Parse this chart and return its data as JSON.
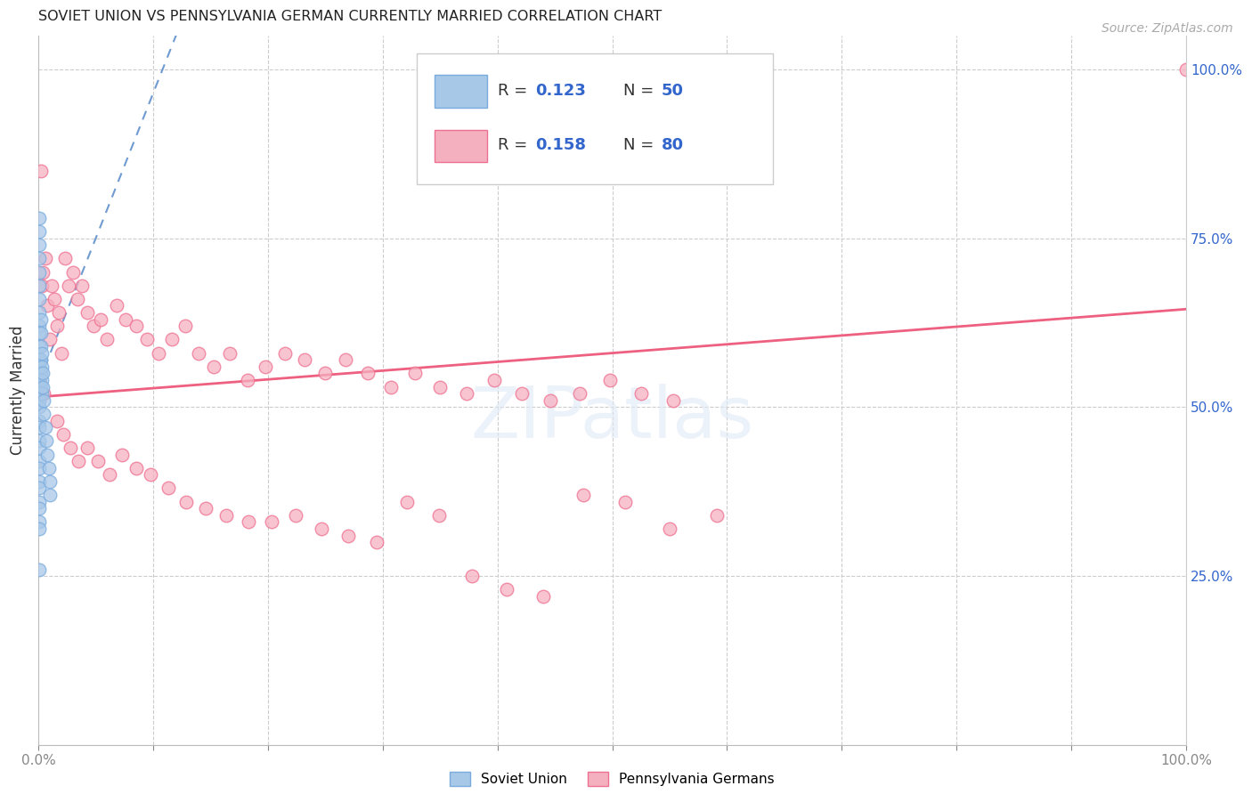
{
  "title": "SOVIET UNION VS PENNSYLVANIA GERMAN CURRENTLY MARRIED CORRELATION CHART",
  "source": "Source: ZipAtlas.com",
  "ylabel": "Currently Married",
  "watermark": "ZIPatlas",
  "color_soviet": "#a8c8e8",
  "color_penn": "#f5b0c0",
  "color_soviet_edge": "#7aabdd",
  "color_penn_edge": "#ee7090",
  "color_soviet_line": "#6090cc",
  "color_penn_line": "#ee6080",
  "color_r_text": "#3366cc",
  "right_ytick_vals": [
    1.0,
    0.75,
    0.5,
    0.25
  ],
  "right_yticks": [
    "100.0%",
    "75.0%",
    "50.0%",
    "25.0%"
  ],
  "soviet_x": [
    0.001,
    0.001,
    0.001,
    0.001,
    0.001,
    0.001,
    0.001,
    0.001,
    0.001,
    0.001,
    0.001,
    0.001,
    0.001,
    0.001,
    0.001,
    0.001,
    0.001,
    0.001,
    0.001,
    0.001,
    0.001,
    0.001,
    0.001,
    0.001,
    0.001,
    0.001,
    0.001,
    0.001,
    0.001,
    0.001,
    0.002,
    0.002,
    0.002,
    0.002,
    0.002,
    0.002,
    0.003,
    0.003,
    0.003,
    0.003,
    0.004,
    0.004,
    0.005,
    0.005,
    0.006,
    0.007,
    0.008,
    0.009,
    0.01,
    0.01
  ],
  "soviet_y": [
    0.78,
    0.76,
    0.74,
    0.72,
    0.7,
    0.68,
    0.66,
    0.64,
    0.62,
    0.61,
    0.59,
    0.57,
    0.56,
    0.54,
    0.53,
    0.51,
    0.5,
    0.48,
    0.47,
    0.45,
    0.44,
    0.42,
    0.41,
    0.39,
    0.38,
    0.36,
    0.35,
    0.33,
    0.32,
    0.26,
    0.63,
    0.61,
    0.59,
    0.57,
    0.55,
    0.53,
    0.58,
    0.56,
    0.54,
    0.52,
    0.55,
    0.53,
    0.51,
    0.49,
    0.47,
    0.45,
    0.43,
    0.41,
    0.39,
    0.37
  ],
  "penn_x": [
    0.001,
    0.002,
    0.003,
    0.004,
    0.005,
    0.006,
    0.008,
    0.01,
    0.012,
    0.014,
    0.016,
    0.018,
    0.02,
    0.023,
    0.026,
    0.03,
    0.034,
    0.038,
    0.043,
    0.048,
    0.054,
    0.06,
    0.068,
    0.076,
    0.085,
    0.095,
    0.105,
    0.116,
    0.128,
    0.14,
    0.153,
    0.167,
    0.182,
    0.198,
    0.215,
    0.232,
    0.25,
    0.268,
    0.287,
    0.307,
    0.328,
    0.35,
    0.373,
    0.397,
    0.421,
    0.446,
    0.472,
    0.498,
    0.525,
    0.553,
    0.016,
    0.022,
    0.028,
    0.035,
    0.043,
    0.052,
    0.062,
    0.073,
    0.085,
    0.098,
    0.113,
    0.129,
    0.146,
    0.164,
    0.183,
    0.203,
    0.224,
    0.247,
    0.27,
    0.295,
    0.321,
    0.349,
    0.378,
    0.408,
    0.44,
    0.475,
    0.511,
    0.55,
    0.591,
    1.0
  ],
  "penn_y": [
    0.54,
    0.85,
    0.68,
    0.7,
    0.52,
    0.72,
    0.65,
    0.6,
    0.68,
    0.66,
    0.62,
    0.64,
    0.58,
    0.72,
    0.68,
    0.7,
    0.66,
    0.68,
    0.64,
    0.62,
    0.63,
    0.6,
    0.65,
    0.63,
    0.62,
    0.6,
    0.58,
    0.6,
    0.62,
    0.58,
    0.56,
    0.58,
    0.54,
    0.56,
    0.58,
    0.57,
    0.55,
    0.57,
    0.55,
    0.53,
    0.55,
    0.53,
    0.52,
    0.54,
    0.52,
    0.51,
    0.52,
    0.54,
    0.52,
    0.51,
    0.48,
    0.46,
    0.44,
    0.42,
    0.44,
    0.42,
    0.4,
    0.43,
    0.41,
    0.4,
    0.38,
    0.36,
    0.35,
    0.34,
    0.33,
    0.33,
    0.34,
    0.32,
    0.31,
    0.3,
    0.36,
    0.34,
    0.25,
    0.23,
    0.22,
    0.37,
    0.36,
    0.32,
    0.34,
    1.0
  ],
  "sov_line_x": [
    0.0,
    0.12
  ],
  "sov_line_y": [
    0.535,
    1.05
  ],
  "penn_line_x": [
    0.0,
    1.0
  ],
  "penn_line_y": [
    0.515,
    0.645
  ],
  "xlim": [
    0.0,
    1.0
  ],
  "ylim": [
    0.0,
    1.05
  ]
}
